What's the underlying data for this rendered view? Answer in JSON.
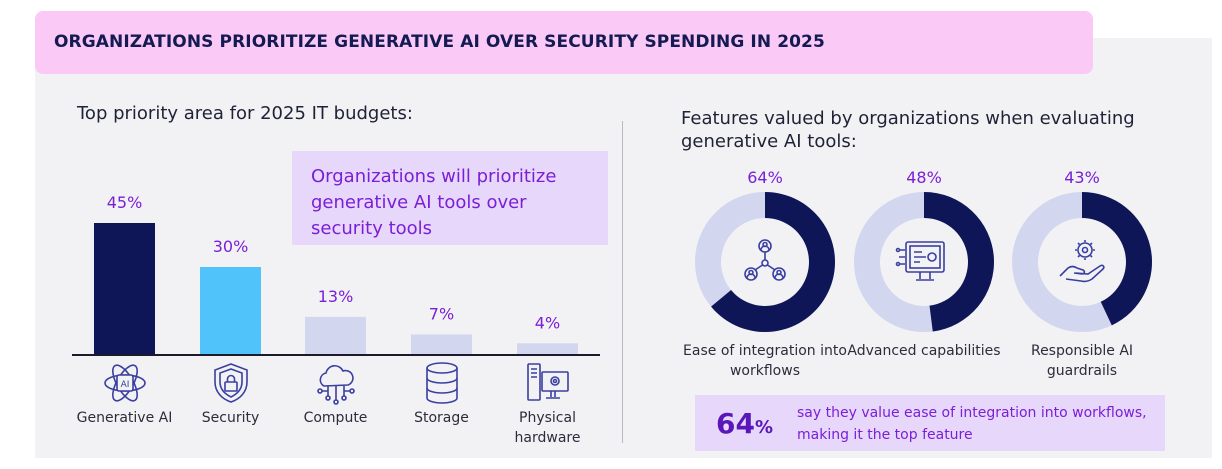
{
  "title": "ORGANIZATIONS PRIORITIZE GENERATIVE AI OVER SECURITY SPENDING IN 2025",
  "left_heading": "Top priority area for 2025 IT budgets:",
  "callout": "Organizations will prioritize generative AI tools over security tools",
  "right_heading": "Features valued by organizations when evaluating generative AI tools:",
  "stat": {
    "number": "64",
    "unit": "%",
    "text": "say they value ease of integration into workflows, making it the top feature"
  },
  "colors": {
    "navy": "#0e1657",
    "sky": "#4fc3fa",
    "pale": "#d2d6ee",
    "purple_text": "#7a1fd6",
    "icon": "#3a3fa0"
  },
  "chart_data": [
    {
      "type": "bar",
      "title": "Top priority area for 2025 IT budgets:",
      "categories": [
        "Generative AI",
        "Security",
        "Compute",
        "Storage",
        "Physical hardware"
      ],
      "values": [
        45,
        30,
        13,
        7,
        4
      ],
      "labels": [
        "45%",
        "30%",
        "13%",
        "7%",
        "4%"
      ],
      "icons": [
        "ai-chip-icon",
        "shield-lock-icon",
        "cloud-network-icon",
        "database-icon",
        "computer-hardware-icon"
      ],
      "bar_colors": [
        "#0e1657",
        "#4fc3fa",
        "#d2d6ee",
        "#d2d6ee",
        "#d2d6ee"
      ],
      "ylim": [
        0,
        45
      ],
      "grid": false
    },
    {
      "type": "pie",
      "title": "Features valued by organizations when evaluating generative AI tools:",
      "categories": [
        "Ease of integration into workflows",
        "Advanced capabilities",
        "Responsible AI guardrails"
      ],
      "values": [
        64,
        48,
        43
      ],
      "labels": [
        "64%",
        "48%",
        "43%"
      ],
      "icons": [
        "people-network-icon",
        "ai-processor-icon",
        "hand-gear-icon"
      ]
    }
  ]
}
